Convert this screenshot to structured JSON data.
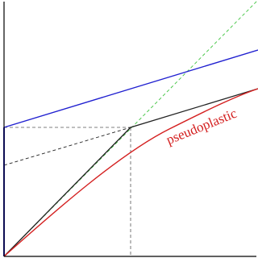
{
  "labels": {
    "curve": "pseudoplastic"
  }
}
